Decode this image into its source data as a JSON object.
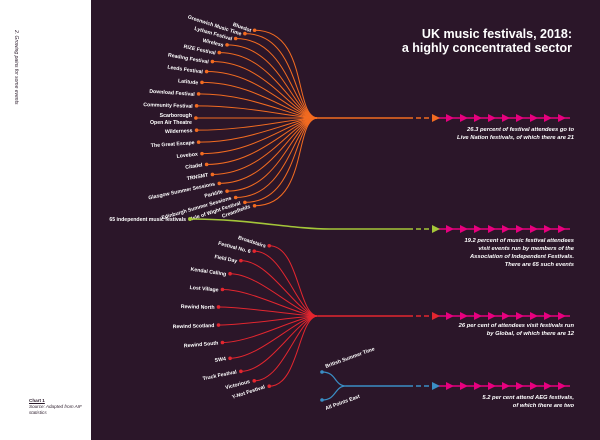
{
  "side_note": "2. Growing pains for some events",
  "caption": {
    "title": "Chart 1",
    "source": "Source: Adapted from AIF statistics"
  },
  "chart_data": {
    "type": "flow",
    "title_lines": [
      "UK music festivals, 2018:",
      "a highly concentrated sector"
    ],
    "colors": {
      "live_nation": "#f26b21",
      "independent": "#a4c639",
      "global": "#e3262f",
      "aeg": "#3a8ec5",
      "arrow": "#e6007e",
      "background": "#2b1629"
    },
    "groups": [
      {
        "key": "live_nation",
        "share_percent": 26.3,
        "events": 21,
        "annotation": [
          "26.3 percent of festival attendees go to",
          "Live Nation festivals, of which there are 21"
        ],
        "festivals": [
          "Bluedot",
          "Greenwich Music Time",
          "Lytham Festival",
          "Wireless",
          "RiZE Festival",
          "Reading Festival",
          "Leeds Festival",
          "Latitude",
          "Download Festival",
          "Community Festival",
          "Scarborough Open Air Theatre",
          "Wilderness",
          "The Great Escape",
          "Lovebox",
          "Citadel",
          "TRNSMT",
          "Glasgow Summer Sessions",
          "Parklife",
          "Edinburgh Summer Sessions",
          "Isle of Wight Festival",
          "Creamfields"
        ]
      },
      {
        "key": "independent",
        "share_percent": 19.2,
        "events": 65,
        "annotation": [
          "19.2 percent of music festival attendees",
          "visit events run by members of the",
          "Association of Independent Festivals.",
          "There are 65 such events"
        ],
        "festivals": [
          "65 independent music festivals"
        ]
      },
      {
        "key": "global",
        "share_percent": 26,
        "events": 12,
        "annotation": [
          "26 per cent of attendees visit festivals run",
          "by Global, of which there are 12"
        ],
        "festivals": [
          "Broadstairs",
          "Festival No. 6",
          "Field Day",
          "Kendal Calling",
          "Lost Village",
          "Rewind North",
          "Rewind Scotland",
          "Rewind South",
          "SW4",
          "Truck Festival",
          "Victorious",
          "Y-Not Festival"
        ]
      },
      {
        "key": "aeg",
        "share_percent": 5.2,
        "events": 2,
        "annotation": [
          "5.2 per cent attend AEG festivals,",
          "of which there are two"
        ],
        "festivals": [
          "British Summer Time",
          "All Points East"
        ]
      }
    ]
  }
}
